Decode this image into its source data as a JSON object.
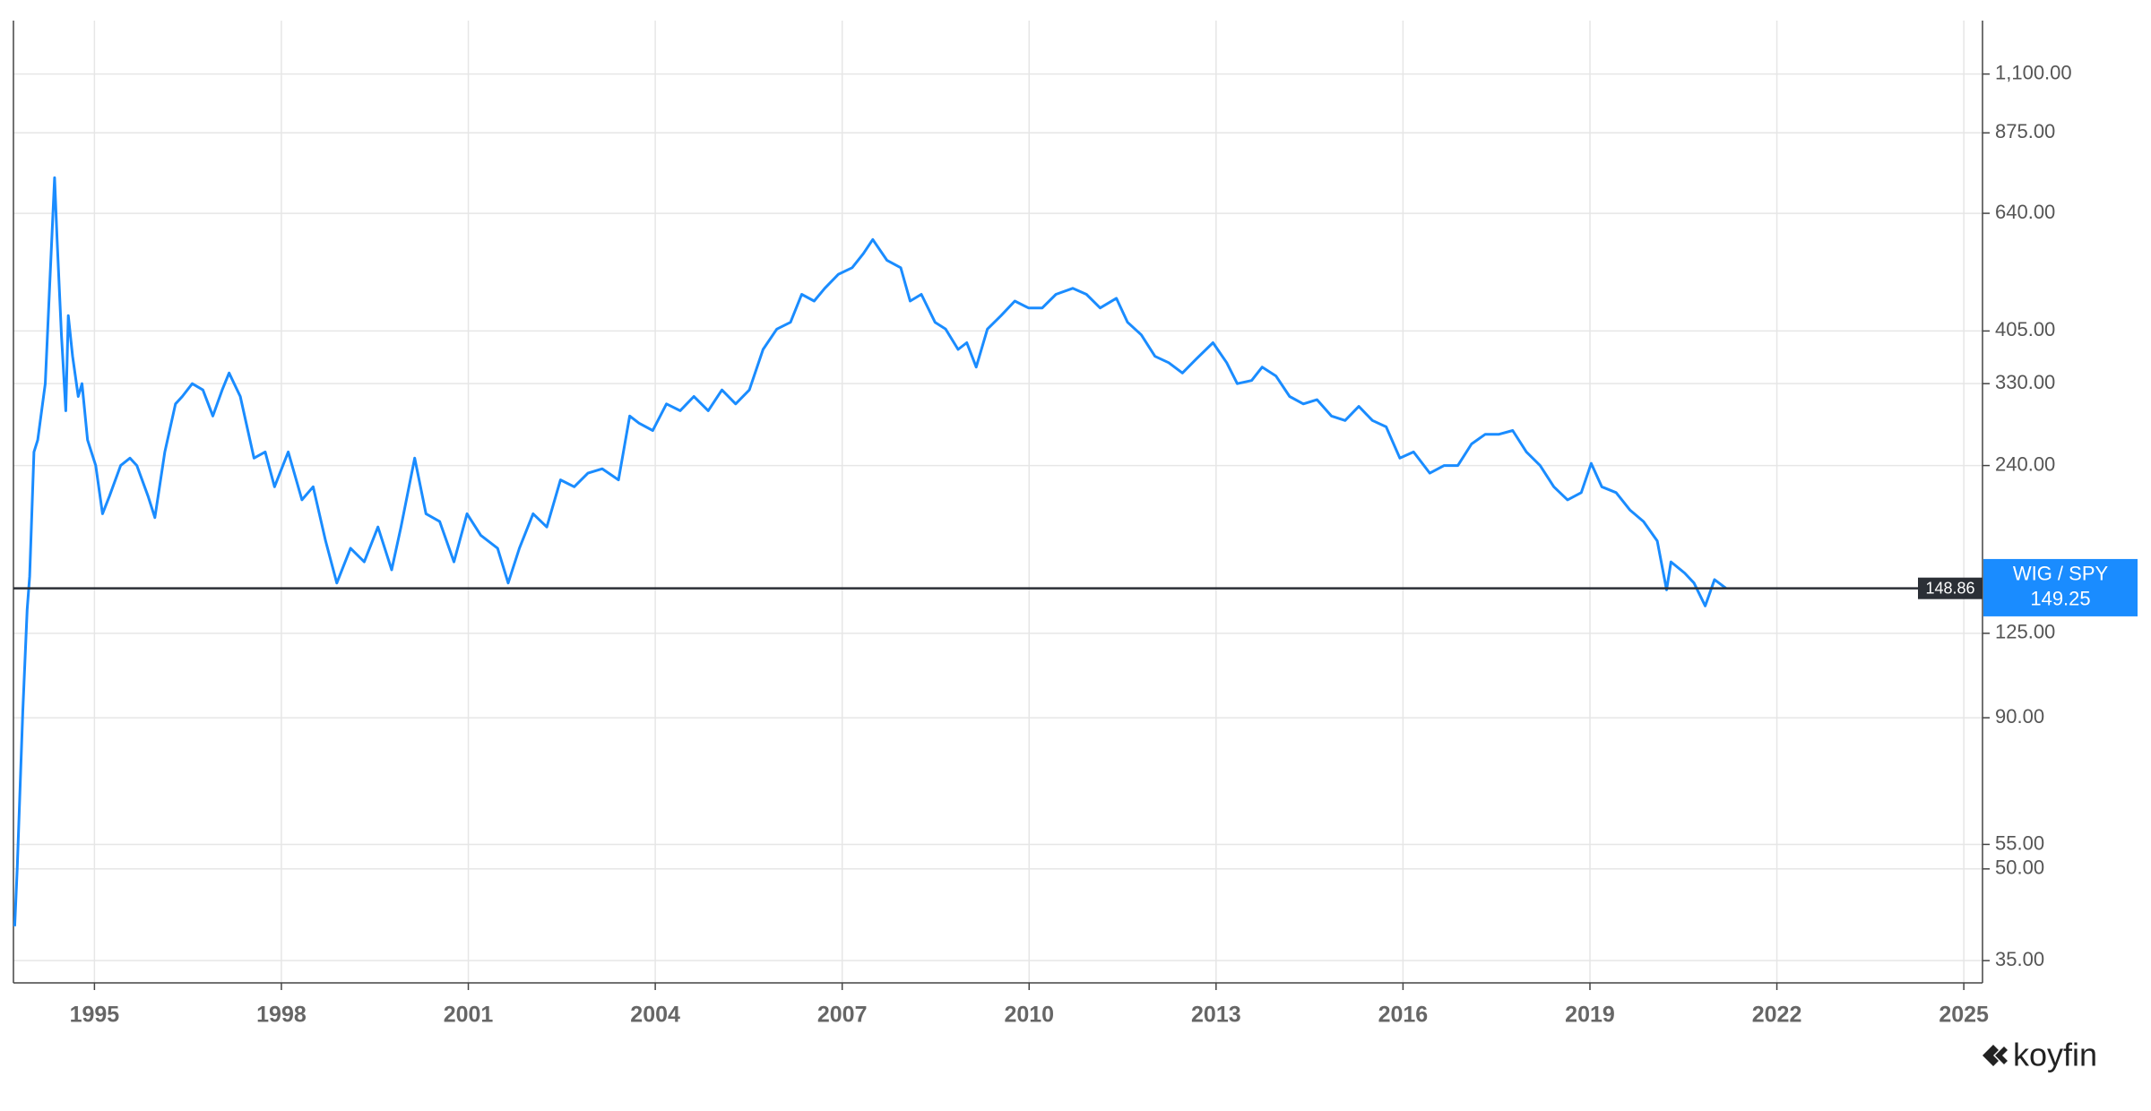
{
  "chart_data": {
    "type": "line",
    "log_scale": true,
    "grid": true,
    "watermark": "koyfin",
    "xlim": [
      1993.7,
      2025.3
    ],
    "xticks": [
      1995,
      1998,
      2001,
      2004,
      2007,
      2010,
      2013,
      2016,
      2019,
      2022,
      2025
    ],
    "ylim": [
      32.1,
      1354
    ],
    "yticks": [
      {
        "value": 35,
        "label": "35.00"
      },
      {
        "value": 50,
        "label": "50.00"
      },
      {
        "value": 55,
        "label": "55.00"
      },
      {
        "value": 90,
        "label": "90.00"
      },
      {
        "value": 125,
        "label": "125.00"
      },
      {
        "value": 240,
        "label": "240.00"
      },
      {
        "value": 330,
        "label": "330.00"
      },
      {
        "value": 405,
        "label": "405.00"
      },
      {
        "value": 640,
        "label": "640.00"
      },
      {
        "value": 875,
        "label": "875.00"
      },
      {
        "value": 1100,
        "label": "1,100.00"
      }
    ],
    "reference_line": {
      "value": 148.86
    },
    "series": [
      {
        "name": "WIG / SPY",
        "color": "#1a8cff",
        "last_value": 149.25,
        "x": [
          1993.72,
          1993.76,
          1993.85,
          1993.92,
          1993.96,
          1994.03,
          1994.09,
          1994.21,
          1994.29,
          1994.36,
          1994.4,
          1994.47,
          1994.54,
          1994.58,
          1994.65,
          1994.74,
          1994.8,
          1994.89,
          1995.02,
          1995.13,
          1995.24,
          1995.42,
          1995.57,
          1995.68,
          1995.86,
          1995.97,
          1996.13,
          1996.3,
          1996.41,
          1996.57,
          1996.74,
          1996.9,
          1997.05,
          1997.16,
          1997.34,
          1997.56,
          1997.74,
          1997.89,
          1998.11,
          1998.33,
          1998.51,
          1998.71,
          1998.89,
          1999.11,
          1999.33,
          1999.55,
          1999.77,
          1999.92,
          2000.14,
          2000.32,
          2000.54,
          2000.77,
          2000.98,
          2001.2,
          2001.47,
          2001.64,
          2001.82,
          2002.04,
          2002.26,
          2002.48,
          2002.7,
          2002.92,
          2003.15,
          2003.41,
          2003.59,
          2003.74,
          2003.96,
          2004.18,
          2004.4,
          2004.62,
          2004.85,
          2005.07,
          2005.29,
          2005.51,
          2005.73,
          2005.95,
          2006.17,
          2006.35,
          2006.55,
          2006.72,
          2006.94,
          2007.16,
          2007.34,
          2007.49,
          2007.72,
          2007.94,
          2008.09,
          2008.27,
          2008.49,
          2008.66,
          2008.86,
          2009.0,
          2009.15,
          2009.33,
          2009.55,
          2009.77,
          2009.99,
          2010.21,
          2010.43,
          2010.7,
          2010.92,
          2011.14,
          2011.4,
          2011.58,
          2011.8,
          2012.02,
          2012.24,
          2012.46,
          2012.68,
          2012.95,
          2013.17,
          2013.34,
          2013.57,
          2013.74,
          2013.96,
          2014.18,
          2014.4,
          2014.62,
          2014.85,
          2015.07,
          2015.29,
          2015.51,
          2015.73,
          2015.95,
          2016.17,
          2016.43,
          2016.66,
          2016.88,
          2017.1,
          2017.32,
          2017.54,
          2017.76,
          2017.98,
          2018.2,
          2018.42,
          2018.64,
          2018.86,
          2019.02,
          2019.19,
          2019.42,
          2019.64,
          2019.86,
          2020.08,
          2020.23,
          2020.3,
          2020.52,
          2020.67,
          2020.85,
          2021.0,
          2021.18
        ],
        "values": [
          40,
          50,
          92,
          137,
          156,
          253,
          265,
          330,
          505,
          735,
          578,
          400,
          297,
          430,
          367,
          314,
          330,
          265,
          240,
          199,
          213,
          240,
          247,
          240,
          213,
          196,
          253,
          305,
          314,
          330,
          322,
          291,
          322,
          344,
          314,
          247,
          253,
          221,
          253,
          210,
          221,
          179,
          152,
          174,
          165,
          189,
          160,
          189,
          247,
          199,
          193,
          165,
          199,
          183,
          174,
          152,
          174,
          199,
          189,
          227,
          221,
          233,
          237,
          227,
          291,
          283,
          275,
          305,
          297,
          314,
          297,
          322,
          305,
          322,
          377,
          408,
          419,
          467,
          455,
          478,
          505,
          518,
          547,
          578,
          533,
          518,
          455,
          467,
          419,
          408,
          377,
          387,
          352,
          408,
          430,
          455,
          443,
          443,
          467,
          478,
          467,
          443,
          460,
          419,
          399,
          367,
          358,
          344,
          363,
          387,
          358,
          330,
          334,
          352,
          340,
          314,
          305,
          310,
          291,
          286,
          302,
          286,
          279,
          247,
          253,
          233,
          240,
          240,
          261,
          271,
          271,
          275,
          253,
          240,
          221,
          210,
          216,
          242,
          221,
          216,
          202,
          193,
          179,
          148,
          165,
          158,
          152,
          139,
          154,
          149
        ]
      }
    ]
  }
}
